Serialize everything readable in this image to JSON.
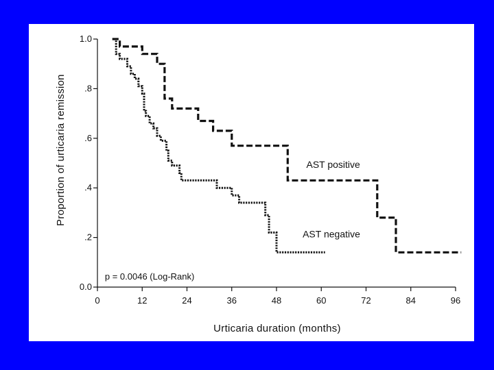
{
  "chart_data": {
    "type": "line",
    "subtype": "kaplan-meier-step",
    "title": "",
    "xlabel": "Urticaria duration (months)",
    "ylabel": "Proportion of urticaria remission",
    "xlim": [
      0,
      96
    ],
    "ylim": [
      0,
      1
    ],
    "x_ticks": [
      0,
      12,
      24,
      36,
      48,
      60,
      72,
      84,
      96
    ],
    "x_tick_labels": [
      "0",
      "12",
      "24",
      "36",
      "48",
      "60",
      "72",
      "84",
      "96"
    ],
    "y_ticks": [
      0,
      0.2,
      0.4,
      0.6,
      0.8,
      1.0
    ],
    "y_tick_labels": [
      "0.0",
      ".2",
      ".4",
      ".6",
      ".8",
      "1.0"
    ],
    "grid": false,
    "series": [
      {
        "name": "AST positive",
        "style": "dashed",
        "color": "#111111",
        "steps": [
          [
            4,
            1.0
          ],
          [
            6,
            0.97
          ],
          [
            12,
            0.94
          ],
          [
            16,
            0.9
          ],
          [
            18,
            0.76
          ],
          [
            20,
            0.72
          ],
          [
            27,
            0.67
          ],
          [
            31,
            0.63
          ],
          [
            36,
            0.57
          ],
          [
            51,
            0.43
          ],
          [
            75,
            0.28
          ],
          [
            80,
            0.14
          ],
          [
            99,
            0.14
          ]
        ]
      },
      {
        "name": "AST negative",
        "style": "dotted",
        "color": "#111111",
        "steps": [
          [
            4,
            1.0
          ],
          [
            5,
            0.94
          ],
          [
            6,
            0.92
          ],
          [
            8,
            0.89
          ],
          [
            9,
            0.86
          ],
          [
            10,
            0.84
          ],
          [
            11,
            0.81
          ],
          [
            12,
            0.78
          ],
          [
            12.5,
            0.71
          ],
          [
            13,
            0.69
          ],
          [
            14,
            0.66
          ],
          [
            15,
            0.64
          ],
          [
            16,
            0.61
          ],
          [
            17,
            0.59
          ],
          [
            18.5,
            0.55
          ],
          [
            19,
            0.51
          ],
          [
            20,
            0.49
          ],
          [
            22,
            0.46
          ],
          [
            22.5,
            0.43
          ],
          [
            32,
            0.4
          ],
          [
            36,
            0.37
          ],
          [
            38,
            0.34
          ],
          [
            45,
            0.29
          ],
          [
            46,
            0.22
          ],
          [
            48,
            0.14
          ],
          [
            61,
            0.14
          ]
        ]
      }
    ],
    "annotations": [
      {
        "text": "AST positive",
        "x": 56,
        "y": 0.48
      },
      {
        "text": "AST negative",
        "x": 55,
        "y": 0.2
      },
      {
        "text": "p = 0.0046 (Log-Rank)",
        "x": 2,
        "y": 0.03
      }
    ]
  }
}
